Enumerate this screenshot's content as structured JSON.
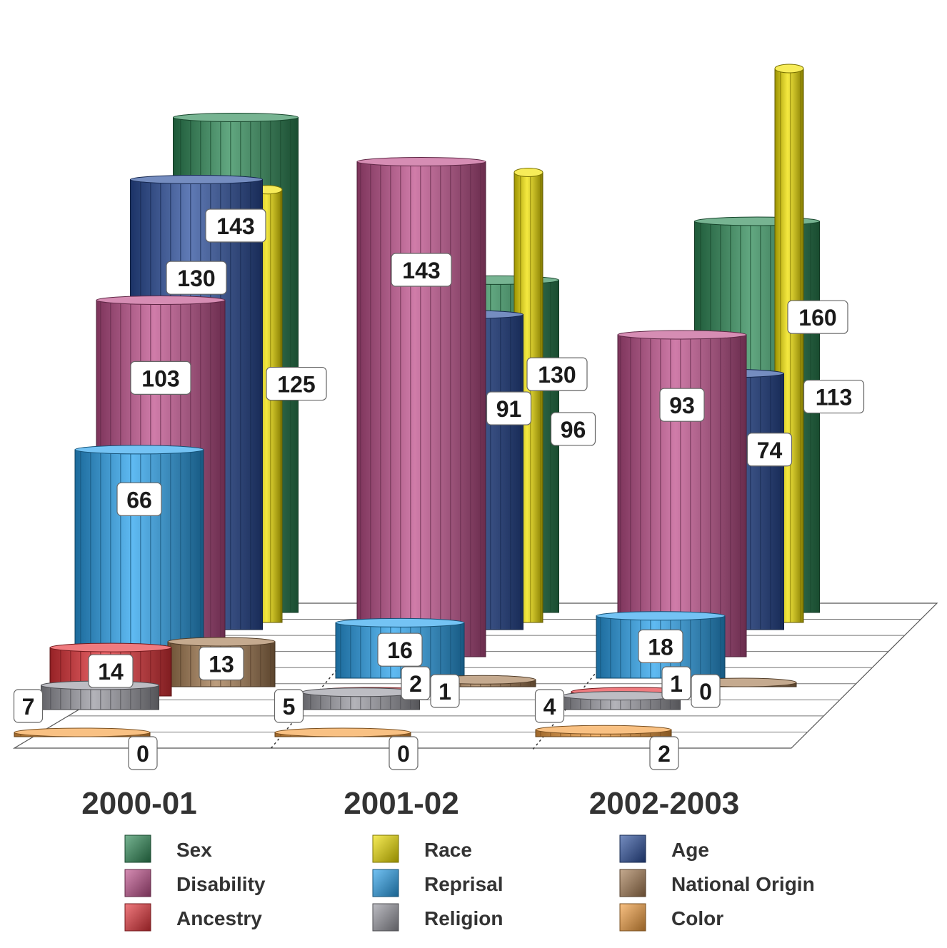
{
  "chart_data": {
    "type": "bar",
    "subtype": "3d-cylinder-grouped",
    "categories": [
      "2000-01",
      "2001-02",
      "2002-2003"
    ],
    "series": [
      {
        "name": "Sex",
        "values": [
          143,
          96,
          113
        ],
        "color": "#2e8b57"
      },
      {
        "name": "Race",
        "values": [
          125,
          130,
          160
        ],
        "color": "#f2e200"
      },
      {
        "name": "Age",
        "values": [
          130,
          91,
          74
        ],
        "color": "#2b4f9e"
      },
      {
        "name": "Disability",
        "values": [
          103,
          143,
          93
        ],
        "color": "#c0508c"
      },
      {
        "name": "Reprisal",
        "values": [
          66,
          16,
          18
        ],
        "color": "#29a3ee"
      },
      {
        "name": "National Origin",
        "values": [
          13,
          2,
          1
        ],
        "color": "#a67c52"
      },
      {
        "name": "Ancestry",
        "values": [
          14,
          1,
          0
        ],
        "color": "#e8343a"
      },
      {
        "name": "Religion",
        "values": [
          7,
          5,
          4
        ],
        "color": "#9a9aa2"
      },
      {
        "name": "Color",
        "values": [
          0,
          0,
          2
        ],
        "color": "#f5a040"
      }
    ],
    "legend": {
      "placement": "bottom",
      "items": [
        {
          "name": "Sex",
          "color": "#2e8b57"
        },
        {
          "name": "Race",
          "color": "#f2e200"
        },
        {
          "name": "Age",
          "color": "#2b4f9e"
        },
        {
          "name": "Disability",
          "color": "#c0508c"
        },
        {
          "name": "Reprisal",
          "color": "#29a3ee"
        },
        {
          "name": "National Origin",
          "color": "#a67c52"
        },
        {
          "name": "Ancestry",
          "color": "#e8343a"
        },
        {
          "name": "Religion",
          "color": "#9a9aa2"
        },
        {
          "name": "Color",
          "color": "#f5a040"
        }
      ]
    },
    "title": "",
    "xlabel": "",
    "ylabel": "",
    "grid": true
  }
}
